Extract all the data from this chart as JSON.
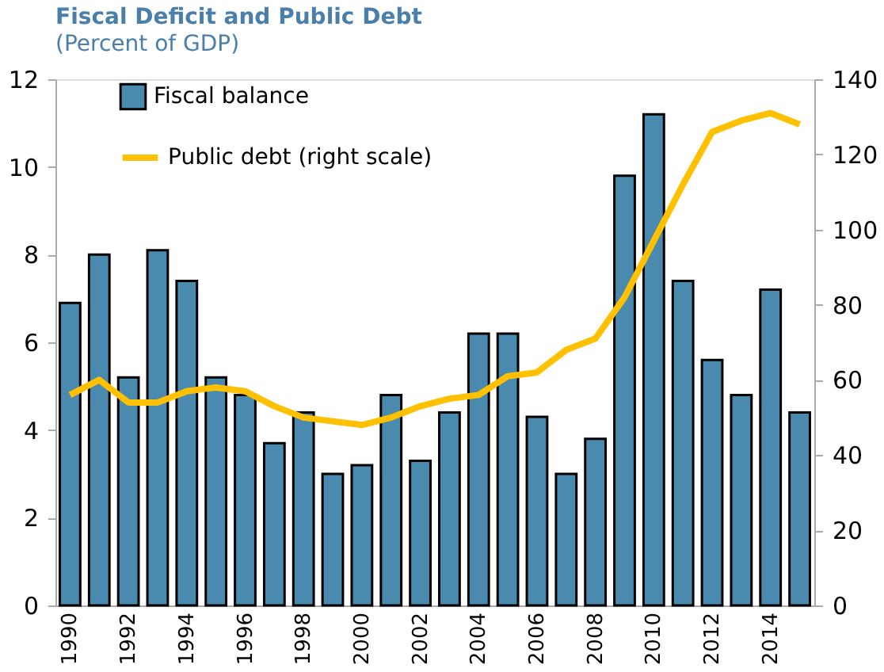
{
  "chart_data": {
    "type": "bar",
    "title": "Fiscal Deficit and Public Debt",
    "subtitle": "(Percent of GDP)",
    "categories": [
      "1990",
      null,
      "1992",
      null,
      "1994",
      null,
      "1996",
      null,
      "1998",
      null,
      "2000",
      null,
      "2002",
      null,
      "2004",
      null,
      "2006",
      null,
      "2008",
      null,
      "2010",
      null,
      "2012",
      null,
      "2014",
      null
    ],
    "series": [
      {
        "name": "Fiscal balance",
        "color": "#4a8aae",
        "values": [
          6.9,
          8.0,
          5.2,
          8.1,
          7.4,
          5.2,
          4.8,
          3.7,
          4.4,
          3.0,
          3.2,
          4.8,
          3.3,
          4.4,
          6.2,
          6.2,
          4.3,
          3.0,
          3.8,
          9.8,
          11.2,
          7.4,
          5.6,
          4.8,
          7.2,
          4.4
        ]
      },
      {
        "name": "Public debt (right scale)",
        "type": "line",
        "axis": "y2",
        "color": "#ffc000",
        "values": [
          56,
          60,
          54,
          54,
          57,
          58,
          57,
          53,
          50,
          49,
          48,
          50,
          53,
          55,
          56,
          61,
          62,
          68,
          71,
          82,
          97,
          112,
          126,
          129,
          131,
          128
        ]
      }
    ],
    "ylim": [
      0,
      12
    ],
    "yticks": [
      0,
      2,
      4,
      6,
      8,
      10,
      12
    ],
    "y2lim": [
      0,
      140
    ],
    "y2ticks": [
      0,
      20,
      40,
      60,
      80,
      100,
      120,
      140
    ],
    "legend": "top left",
    "grid": false
  }
}
